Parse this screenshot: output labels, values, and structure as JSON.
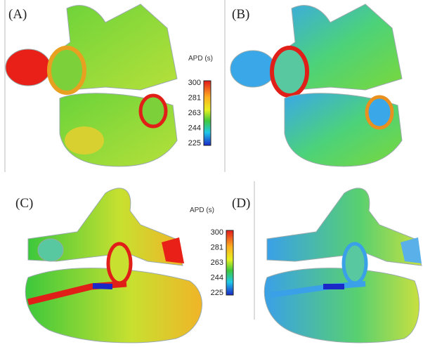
{
  "panels": [
    {
      "label": "(A)"
    },
    {
      "label": "(B)"
    },
    {
      "label": "(C)"
    },
    {
      "label": "(D)"
    }
  ],
  "colorbars": [
    {
      "title": "APD (s)",
      "ticks": [
        300,
        281,
        263,
        244,
        225
      ]
    },
    {
      "title": "APD (s)",
      "ticks": [
        300,
        281,
        263,
        244,
        225
      ]
    }
  ]
}
